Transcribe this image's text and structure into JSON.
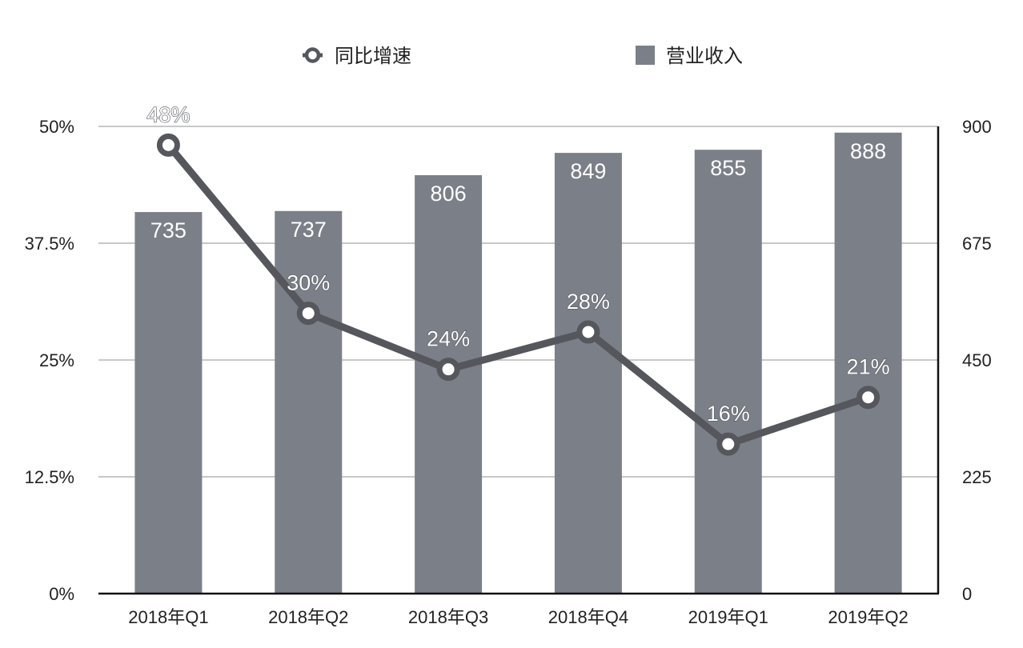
{
  "chart_data": {
    "type": "bar",
    "categories": [
      "2018年Q1",
      "2018年Q2",
      "2018年Q3",
      "2018年Q4",
      "2019年Q1",
      "2019年Q2"
    ],
    "series": [
      {
        "name": "营业收入",
        "type": "bar",
        "axis": "right",
        "values": [
          735,
          737,
          806,
          849,
          855,
          888
        ],
        "labels": [
          "735",
          "737",
          "806",
          "849",
          "855",
          "888"
        ],
        "color": "#7b7f88"
      },
      {
        "name": "同比增速",
        "type": "line",
        "axis": "left",
        "values": [
          48,
          30,
          24,
          28,
          16,
          21
        ],
        "labels": [
          "48%",
          "30%",
          "24%",
          "28%",
          "16%",
          "21%"
        ],
        "color": "#55575d"
      }
    ],
    "y_left": {
      "ylim": [
        0,
        50
      ],
      "ticks": [
        "0%",
        "12.5%",
        "25%",
        "37.5%",
        "50%"
      ]
    },
    "y_right": {
      "ylim": [
        0,
        900
      ],
      "ticks": [
        "0",
        "225",
        "450",
        "675",
        "900"
      ]
    },
    "grid": true,
    "legend": "top"
  }
}
